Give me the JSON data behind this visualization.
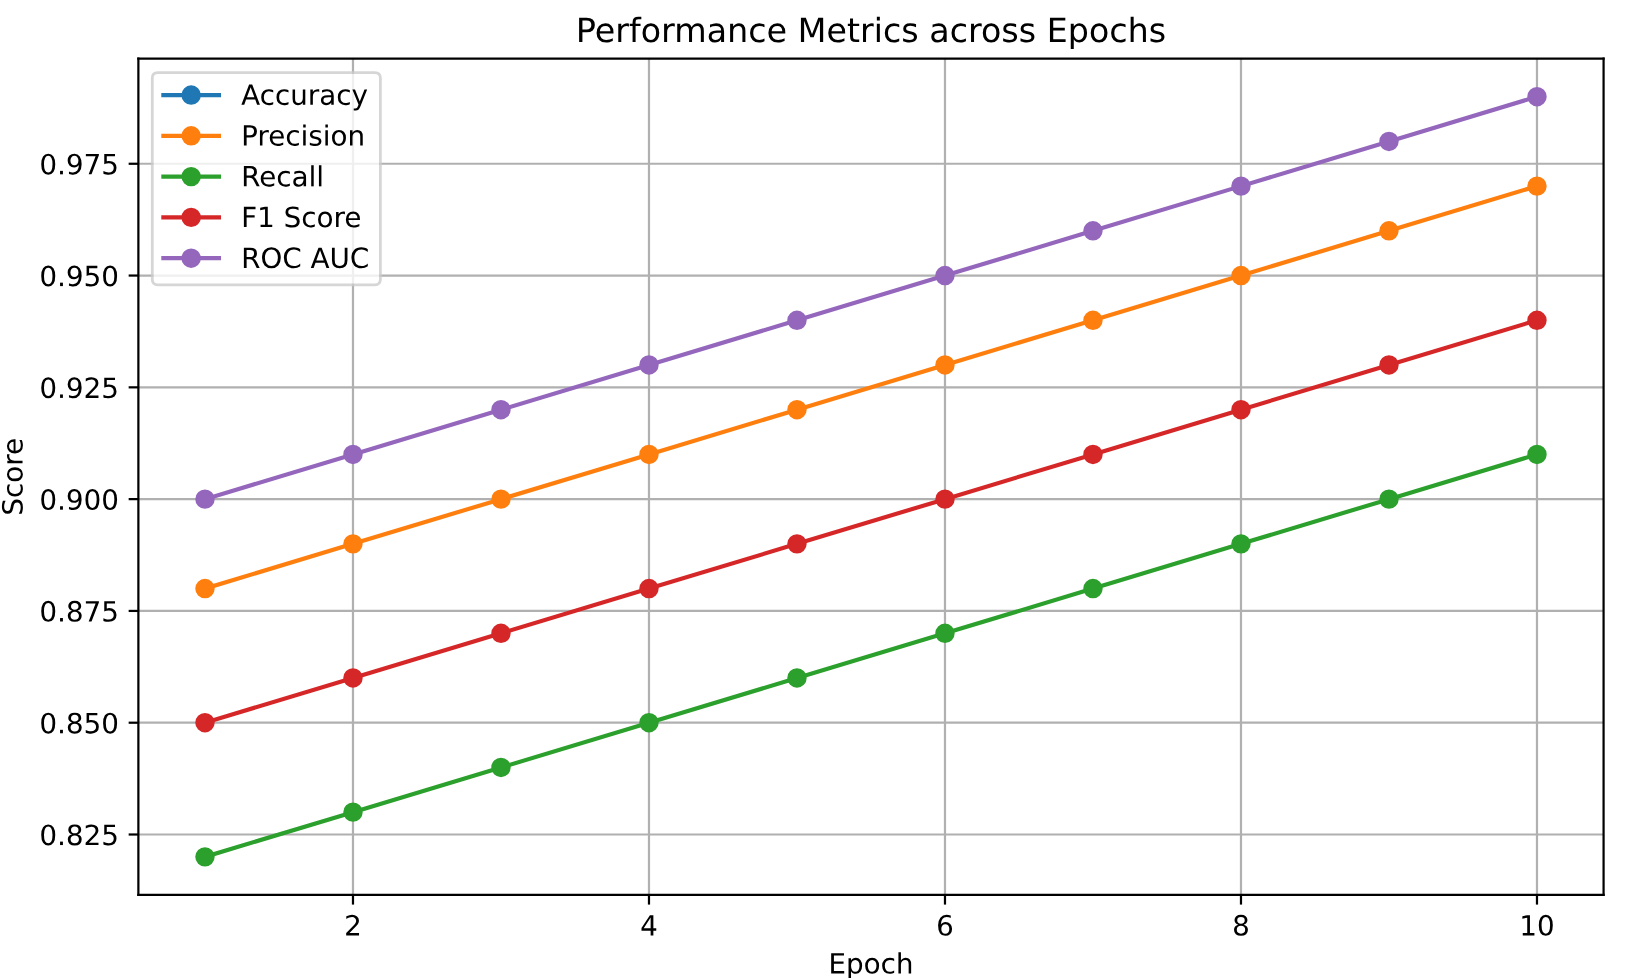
{
  "chart_data": {
    "type": "line",
    "title": "Performance Metrics across Epochs",
    "xlabel": "Epoch",
    "ylabel": "Score",
    "x": [
      1,
      2,
      3,
      4,
      5,
      6,
      7,
      8,
      9,
      10
    ],
    "series": [
      {
        "name": "Accuracy",
        "color": "#1f77b4",
        "values": [
          null,
          null,
          null,
          null,
          null,
          null,
          null,
          null,
          null,
          null
        ]
      },
      {
        "name": "Precision",
        "color": "#ff7f0e",
        "values": [
          0.88,
          0.89,
          0.9,
          0.91,
          0.92,
          0.93,
          0.94,
          0.95,
          0.96,
          0.97
        ]
      },
      {
        "name": "Recall",
        "color": "#2ca02c",
        "values": [
          0.82,
          0.83,
          0.84,
          0.85,
          0.86,
          0.87,
          0.88,
          0.89,
          0.9,
          0.91
        ]
      },
      {
        "name": "F1 Score",
        "color": "#d62728",
        "values": [
          0.85,
          0.86,
          0.87,
          0.88,
          0.89,
          0.9,
          0.91,
          0.92,
          0.93,
          0.94
        ]
      },
      {
        "name": "ROC AUC",
        "color": "#9467bd",
        "values": [
          0.9,
          0.91,
          0.92,
          0.93,
          0.94,
          0.95,
          0.96,
          0.97,
          0.98,
          0.99
        ]
      }
    ],
    "xlim": [
      0.55,
      10.45
    ],
    "xticks": [
      2,
      4,
      6,
      8,
      10
    ],
    "ylim": [
      0.8115,
      0.9985
    ],
    "yticks": [
      {
        "value": 0.825,
        "label": "0.825"
      },
      {
        "value": 0.85,
        "label": "0.850"
      },
      {
        "value": 0.875,
        "label": "0.875"
      },
      {
        "value": 0.9,
        "label": "0.900"
      },
      {
        "value": 0.925,
        "label": "0.925"
      },
      {
        "value": 0.95,
        "label": "0.950"
      },
      {
        "value": 0.975,
        "label": "0.975"
      }
    ],
    "grid": true,
    "legend": "top left",
    "marker": "circle",
    "line_style": "solid"
  }
}
